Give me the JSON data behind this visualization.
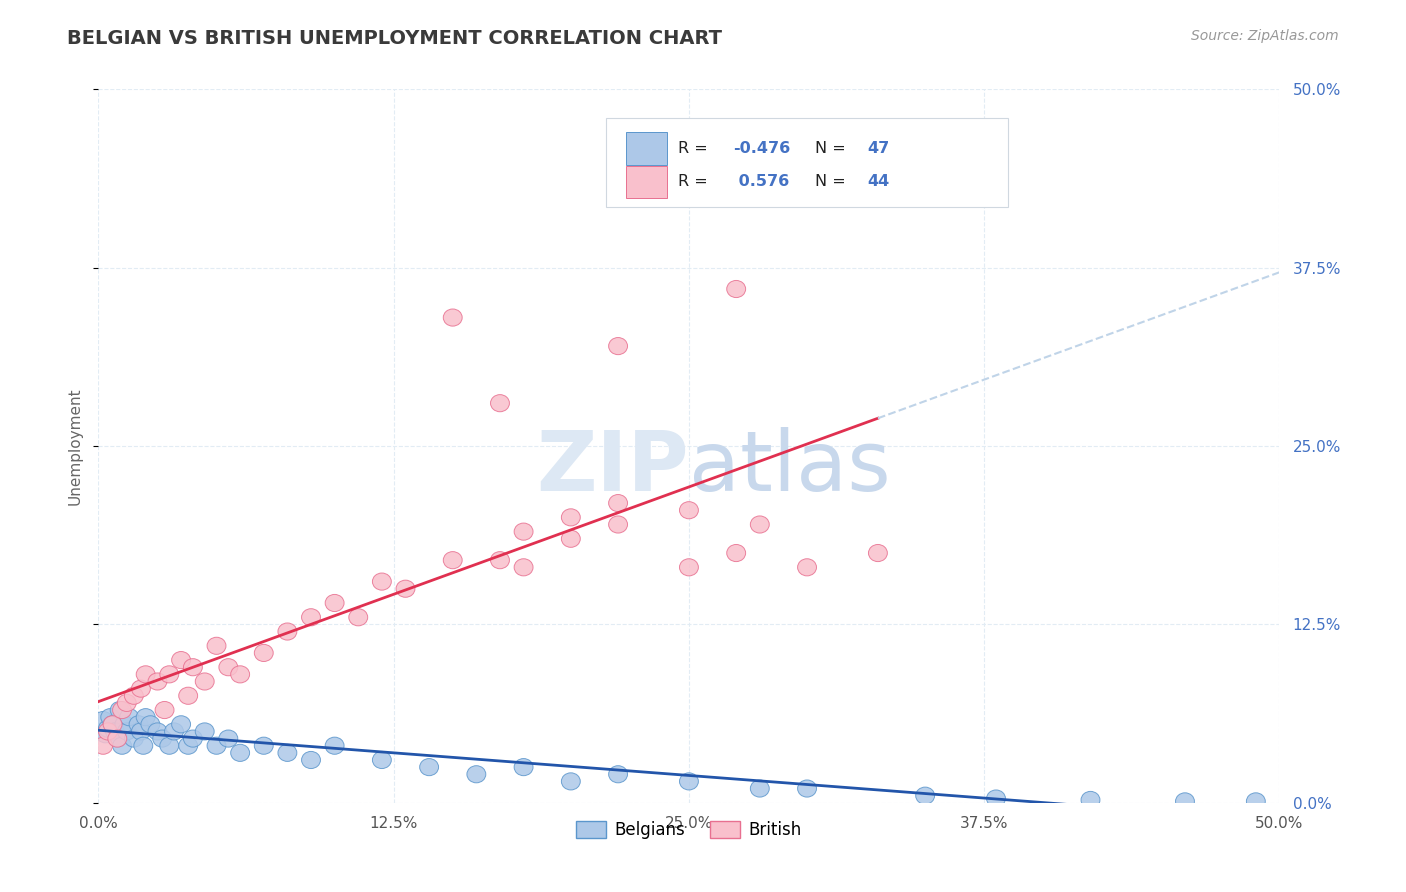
{
  "title": "BELGIAN VS BRITISH UNEMPLOYMENT CORRELATION CHART",
  "source": "Source: ZipAtlas.com",
  "ylabel": "Unemployment",
  "xlim": [
    0.0,
    0.5
  ],
  "ylim": [
    0.0,
    0.5
  ],
  "x_ticks": [
    0.0,
    0.125,
    0.25,
    0.375,
    0.5
  ],
  "y_ticks": [
    0.0,
    0.125,
    0.25,
    0.375,
    0.5
  ],
  "belgians_R": -0.476,
  "belgians_N": 47,
  "british_R": 0.576,
  "british_N": 44,
  "blue_face": "#adc8e8",
  "blue_edge": "#5b96cc",
  "pink_face": "#f9c0cc",
  "pink_edge": "#e87090",
  "blue_trend": "#2255aa",
  "pink_trend": "#e03050",
  "dash_color": "#c0d4e8",
  "grid_color": "#e2ecf4",
  "title_color": "#3a3a3a",
  "source_color": "#999999",
  "bg_color": "#ffffff",
  "watermark_color": "#dde8f4",
  "right_tick_color": "#4472c4",
  "belgians_x": [
    0.002,
    0.003,
    0.004,
    0.005,
    0.006,
    0.007,
    0.008,
    0.009,
    0.01,
    0.011,
    0.012,
    0.013,
    0.015,
    0.017,
    0.018,
    0.019,
    0.02,
    0.022,
    0.025,
    0.027,
    0.03,
    0.032,
    0.035,
    0.038,
    0.04,
    0.045,
    0.05,
    0.055,
    0.06,
    0.07,
    0.08,
    0.09,
    0.1,
    0.12,
    0.14,
    0.16,
    0.18,
    0.2,
    0.22,
    0.25,
    0.28,
    0.3,
    0.35,
    0.38,
    0.42,
    0.46,
    0.49
  ],
  "belgians_y": [
    0.058,
    0.048,
    0.052,
    0.06,
    0.055,
    0.05,
    0.045,
    0.065,
    0.04,
    0.055,
    0.05,
    0.06,
    0.045,
    0.055,
    0.05,
    0.04,
    0.06,
    0.055,
    0.05,
    0.045,
    0.04,
    0.05,
    0.055,
    0.04,
    0.045,
    0.05,
    0.04,
    0.045,
    0.035,
    0.04,
    0.035,
    0.03,
    0.04,
    0.03,
    0.025,
    0.02,
    0.025,
    0.015,
    0.02,
    0.015,
    0.01,
    0.01,
    0.005,
    0.003,
    0.002,
    0.001,
    0.001
  ],
  "british_x": [
    0.002,
    0.004,
    0.006,
    0.008,
    0.01,
    0.012,
    0.015,
    0.018,
    0.02,
    0.025,
    0.028,
    0.03,
    0.035,
    0.038,
    0.04,
    0.045,
    0.05,
    0.055,
    0.06,
    0.07,
    0.08,
    0.09,
    0.1,
    0.11,
    0.12,
    0.13,
    0.15,
    0.17,
    0.18,
    0.2,
    0.22,
    0.25,
    0.27,
    0.3,
    0.33,
    0.18,
    0.2,
    0.22,
    0.25,
    0.28,
    0.15,
    0.17,
    0.22,
    0.27
  ],
  "british_y": [
    0.04,
    0.05,
    0.055,
    0.045,
    0.065,
    0.07,
    0.075,
    0.08,
    0.09,
    0.085,
    0.065,
    0.09,
    0.1,
    0.075,
    0.095,
    0.085,
    0.11,
    0.095,
    0.09,
    0.105,
    0.12,
    0.13,
    0.14,
    0.13,
    0.155,
    0.15,
    0.17,
    0.17,
    0.19,
    0.2,
    0.21,
    0.165,
    0.175,
    0.165,
    0.175,
    0.165,
    0.185,
    0.195,
    0.205,
    0.195,
    0.34,
    0.28,
    0.32,
    0.36
  ]
}
